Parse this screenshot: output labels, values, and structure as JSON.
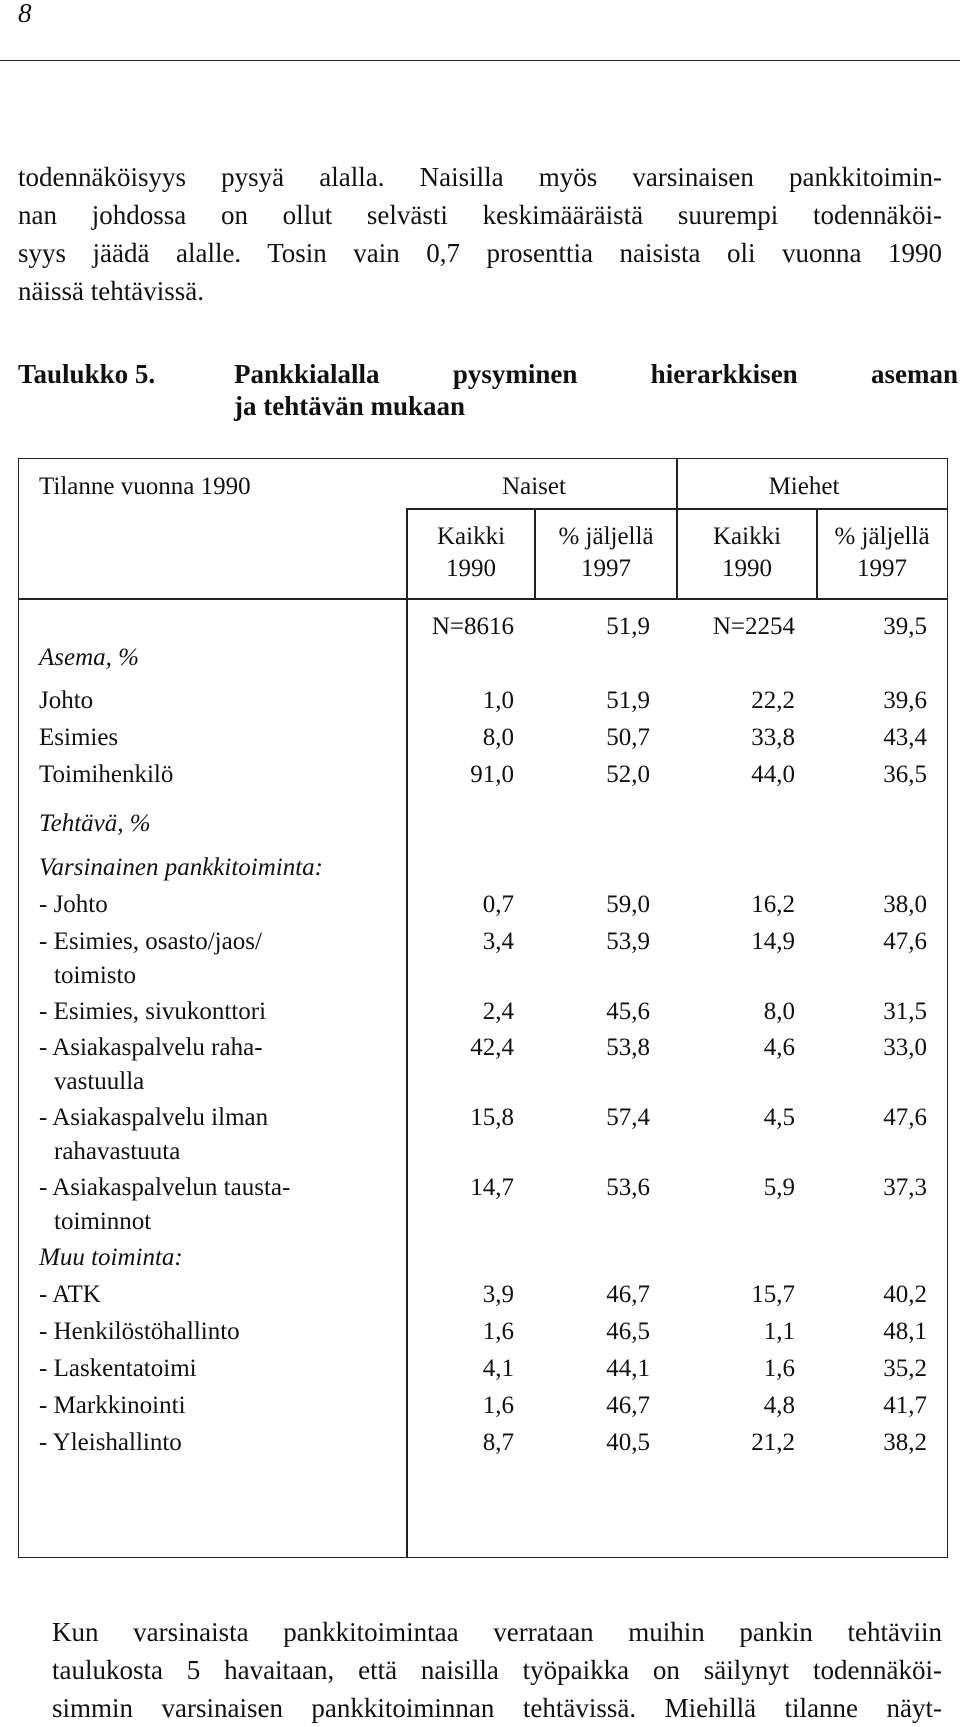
{
  "page_number": "8",
  "intro_lines": [
    "todennäköisyys pysyä alalla. Naisilla myös varsinaisen pankkitoimin-",
    "nan johdossa on ollut selvästi keskimääräistä suurempi todennäköi-",
    "syys jäädä alalle. Tosin vain 0,7 prosenttia naisista oli vuonna 1990",
    "näissä tehtävissä."
  ],
  "caption": {
    "label": "Taulukko 5.",
    "lines": [
      "Pankkialalla pysyminen hierarkkisen aseman",
      "ja tehtävän mukaan"
    ]
  },
  "table": {
    "corner_header": "Tilanne vuonna 1990",
    "group_naiset": "Naiset",
    "group_miehet": "Miehet",
    "sub": {
      "c1a": "Kaikki",
      "c1b": "1990",
      "c2a": "% jäljellä",
      "c2b": "1997",
      "c3a": "Kaikki",
      "c3b": "1990",
      "c4a": "% jäljellä",
      "c4b": "1997"
    },
    "n_row": [
      "N=8616",
      "51,9",
      "N=2254",
      "39,5"
    ],
    "rows": [
      {
        "label": "Asema, %",
        "italic": true,
        "values": [
          "",
          "",
          "",
          ""
        ]
      },
      {
        "label": "Johto",
        "values": [
          "1,0",
          "51,9",
          "22,2",
          "39,6"
        ]
      },
      {
        "label": "Esimies",
        "values": [
          "8,0",
          "50,7",
          "33,8",
          "43,4"
        ]
      },
      {
        "label": "Toimihenkilö",
        "values": [
          "91,0",
          "52,0",
          "44,0",
          "36,5"
        ]
      },
      {
        "label": "Tehtävä, %",
        "italic": true,
        "values": [
          "",
          "",
          "",
          ""
        ]
      },
      {
        "label": "Varsinainen pankkitoiminta:",
        "italic": true,
        "values": [
          "",
          "",
          "",
          ""
        ]
      },
      {
        "label": "- Johto",
        "values": [
          "0,7",
          "59,0",
          "16,2",
          "38,0"
        ]
      },
      {
        "label": "- Esimies, osasto/jaos/",
        "label2": "toimisto",
        "values": [
          "3,4",
          "53,9",
          "14,9",
          "47,6"
        ]
      },
      {
        "label": "- Esimies, sivukonttori",
        "values": [
          "2,4",
          "45,6",
          "8,0",
          "31,5"
        ]
      },
      {
        "label": "- Asiakaspalvelu raha-",
        "label2": "vastuulla",
        "values": [
          "42,4",
          "53,8",
          "4,6",
          "33,0"
        ]
      },
      {
        "label": "- Asiakaspalvelu ilman",
        "label2": "rahavastuuta",
        "values": [
          "15,8",
          "57,4",
          "4,5",
          "47,6"
        ]
      },
      {
        "label": "- Asiakaspalvelun tausta-",
        "label2": "toiminnot",
        "values": [
          "14,7",
          "53,6",
          "5,9",
          "37,3"
        ]
      },
      {
        "label": "Muu toiminta:",
        "italic": true,
        "values": [
          "",
          "",
          "",
          ""
        ]
      },
      {
        "label": "- ATK",
        "values": [
          "3,9",
          "46,7",
          "15,7",
          "40,2"
        ]
      },
      {
        "label": "- Henkilöstöhallinto",
        "values": [
          "1,6",
          "46,5",
          "1,1",
          "48,1"
        ]
      },
      {
        "label": "- Laskentatoimi",
        "values": [
          "4,1",
          "44,1",
          "1,6",
          "35,2"
        ]
      },
      {
        "label": "- Markkinointi",
        "values": [
          "1,6",
          "46,7",
          "4,8",
          "41,7"
        ]
      },
      {
        "label": "- Yleishallinto",
        "values": [
          "8,7",
          "40,5",
          "21,2",
          "38,2"
        ]
      }
    ]
  },
  "outro_lines": [
    "Kun varsinaista pankkitoimintaa verrataan muihin pankin tehtäviin",
    "taulukosta 5 havaitaan, että naisilla työpaikka on säilynyt todennäköi-",
    "simmin varsinaisen pankkitoiminnan tehtävissä. Miehillä tilanne näyt-"
  ]
}
